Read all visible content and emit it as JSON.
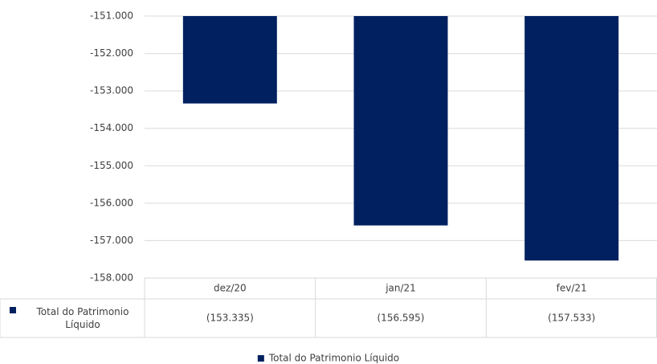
{
  "chart_data": {
    "type": "bar",
    "categories": [
      "dez/20",
      "jan/21",
      "fev/21"
    ],
    "series": [
      {
        "name": "Total do Patrimonio Líquido",
        "color": "#002060",
        "values": [
          -153335,
          -156595,
          -157533
        ],
        "value_labels": [
          "(153.335)",
          "(156.595)",
          "(157.533)"
        ]
      }
    ],
    "ylim": [
      -158000,
      -151000
    ],
    "yticks": [
      {
        "value": -158000,
        "label": "-158.000"
      },
      {
        "value": -157000,
        "label": "-157.000"
      },
      {
        "value": -156000,
        "label": "-156.000"
      },
      {
        "value": -155000,
        "label": "-155.000"
      },
      {
        "value": -154000,
        "label": "-154.000"
      },
      {
        "value": -153000,
        "label": "-153.000"
      },
      {
        "value": -152000,
        "label": "-152.000"
      },
      {
        "value": -151000,
        "label": "-151.000"
      }
    ],
    "grid": true,
    "legend": "bottom"
  }
}
